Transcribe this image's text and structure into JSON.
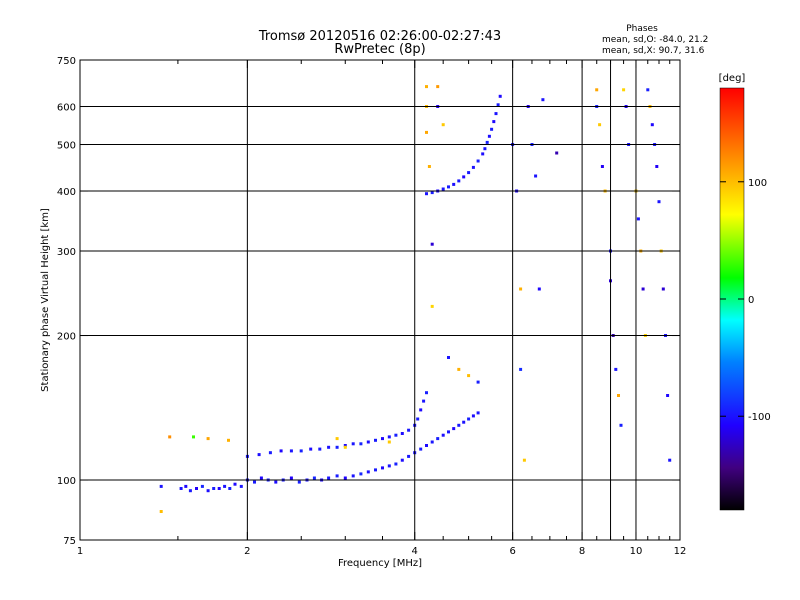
{
  "chart_data": {
    "type": "scatter",
    "title": "Tromsø 20120516 02:26:00-02:27:43",
    "subtitle": "RwPretec (8p)",
    "xlabel": "Frequency [MHz]",
    "ylabel": "Stationary phase Virtual Height [km]",
    "x_scale": "log",
    "y_scale": "log",
    "xlim": [
      1,
      12
    ],
    "ylim": [
      75,
      750
    ],
    "x_ticks": [
      1,
      2,
      4,
      6,
      8,
      10,
      12
    ],
    "x_tick_labels": [
      "1",
      "2",
      "4",
      "6",
      "8",
      "10",
      "12"
    ],
    "x_minor_ticks": [
      1.5,
      2.5,
      3,
      3.5,
      4.5,
      5,
      5.5,
      6.5,
      7,
      7.5,
      8.5,
      9,
      9.5,
      10.5,
      11,
      11.5
    ],
    "y_ticks": [
      75,
      100,
      200,
      300,
      400,
      500,
      600,
      750
    ],
    "y_tick_labels": [
      "75",
      "100",
      "200",
      "300",
      "400",
      "500",
      "600",
      "750"
    ],
    "grid_x": [
      2,
      4,
      6,
      8,
      9,
      10
    ],
    "grid_y": [
      100,
      200,
      300,
      400,
      500,
      600
    ],
    "phases": {
      "header": "Phases",
      "o_line": "mean, sd,O: -84.0, 21.2",
      "x_line": "mean, sd,X:  90.7, 31.6"
    },
    "colorbar": {
      "label": "[deg]",
      "range": [
        -180,
        180
      ],
      "ticks": [
        100,
        0,
        -100
      ],
      "tick_labels": [
        "100",
        "0",
        "-100"
      ]
    },
    "series": [
      {
        "trace": "lower",
        "points": [
          [
            1.52,
            96,
            -100
          ],
          [
            1.55,
            97,
            -105
          ],
          [
            1.58,
            95,
            -98
          ],
          [
            1.62,
            96,
            -110
          ],
          [
            1.66,
            97,
            -92
          ],
          [
            1.7,
            95,
            -102
          ],
          [
            1.74,
            96,
            -96
          ],
          [
            1.78,
            96,
            -108
          ],
          [
            1.82,
            97,
            -100
          ],
          [
            1.86,
            96,
            -95
          ],
          [
            1.9,
            98,
            -104
          ],
          [
            1.95,
            97,
            -99
          ],
          [
            2.0,
            100,
            -101
          ],
          [
            2.06,
            99,
            -97
          ],
          [
            2.12,
            101,
            -106
          ],
          [
            2.18,
            100,
            -94
          ],
          [
            2.25,
            99,
            -103
          ],
          [
            2.32,
            100,
            -98
          ],
          [
            2.4,
            101,
            -109
          ],
          [
            2.48,
            99,
            -95
          ],
          [
            2.56,
            100,
            -100
          ],
          [
            2.64,
            101,
            -93
          ],
          [
            2.72,
            100,
            -104
          ],
          [
            2.8,
            101,
            -99
          ],
          [
            2.9,
            102,
            -96
          ],
          [
            3.0,
            101,
            -107
          ],
          [
            3.1,
            102,
            -100
          ],
          [
            3.2,
            103,
            -92
          ],
          [
            3.3,
            104,
            -101
          ],
          [
            3.4,
            105,
            -97
          ],
          [
            3.5,
            106,
            -105
          ],
          [
            3.6,
            107,
            -99
          ],
          [
            3.7,
            108,
            -94
          ],
          [
            3.8,
            110,
            -103
          ],
          [
            3.9,
            112,
            -98
          ],
          [
            4.0,
            114,
            -100
          ],
          [
            4.1,
            116,
            -96
          ],
          [
            4.2,
            118,
            -104
          ],
          [
            4.3,
            120,
            -99
          ],
          [
            4.4,
            122,
            -95
          ],
          [
            4.5,
            124,
            -102
          ],
          [
            4.6,
            126,
            -98
          ],
          [
            4.7,
            128,
            -106
          ],
          [
            4.8,
            130,
            -97
          ],
          [
            4.9,
            132,
            -101
          ],
          [
            5.0,
            134,
            -95
          ],
          [
            5.1,
            136,
            -103
          ],
          [
            5.2,
            138,
            -99
          ]
        ]
      },
      {
        "trace": "upper",
        "points": [
          [
            2.0,
            112,
            -98
          ],
          [
            2.1,
            113,
            -102
          ],
          [
            2.2,
            114,
            -96
          ],
          [
            2.3,
            115,
            -105
          ],
          [
            2.4,
            115,
            -99
          ],
          [
            2.5,
            115,
            -94
          ],
          [
            2.6,
            116,
            -103
          ],
          [
            2.7,
            116,
            -97
          ],
          [
            2.8,
            117,
            -101
          ],
          [
            2.9,
            117,
            -95
          ],
          [
            3.0,
            118,
            -104
          ],
          [
            3.1,
            119,
            -99
          ],
          [
            3.2,
            119,
            -93
          ],
          [
            3.3,
            120,
            -102
          ],
          [
            3.4,
            121,
            -97
          ],
          [
            3.5,
            122,
            -106
          ],
          [
            3.6,
            123,
            -100
          ],
          [
            3.7,
            124,
            -95
          ],
          [
            3.8,
            125,
            -103
          ],
          [
            3.9,
            127,
            -98
          ],
          [
            4.0,
            130,
            -101
          ],
          [
            4.05,
            134,
            -96
          ],
          [
            4.1,
            140,
            -104
          ],
          [
            4.15,
            146,
            -99
          ],
          [
            4.2,
            152,
            -95
          ]
        ]
      },
      {
        "trace": "f-layer",
        "points": [
          [
            4.2,
            395,
            -100
          ],
          [
            4.3,
            397,
            -96
          ],
          [
            4.4,
            400,
            -104
          ],
          [
            4.5,
            404,
            -99
          ],
          [
            4.6,
            408,
            -95
          ],
          [
            4.7,
            413,
            -102
          ],
          [
            4.8,
            420,
            -98
          ],
          [
            4.9,
            428,
            -106
          ],
          [
            5.0,
            437,
            -97
          ],
          [
            5.1,
            448,
            -101
          ],
          [
            5.2,
            462,
            -95
          ],
          [
            5.3,
            478,
            -103
          ],
          [
            5.35,
            490,
            -99
          ],
          [
            5.4,
            505,
            -94
          ],
          [
            5.45,
            520,
            -102
          ],
          [
            5.5,
            538,
            -97
          ],
          [
            5.55,
            558,
            -105
          ],
          [
            5.6,
            580,
            -100
          ],
          [
            5.65,
            605,
            -96
          ],
          [
            5.7,
            630,
            -104
          ]
        ]
      },
      {
        "trace": "scattered",
        "points": [
          [
            1.4,
            97,
            -100
          ],
          [
            1.4,
            86,
            100
          ],
          [
            1.45,
            123,
            120
          ],
          [
            1.6,
            123,
            30
          ],
          [
            1.7,
            122,
            110
          ],
          [
            1.85,
            121,
            105
          ],
          [
            2.9,
            122,
            95
          ],
          [
            3.0,
            117,
            90
          ],
          [
            3.6,
            120,
            95
          ],
          [
            4.2,
            660,
            105
          ],
          [
            4.2,
            600,
            100
          ],
          [
            4.2,
            530,
            110
          ],
          [
            4.25,
            450,
            105
          ],
          [
            4.3,
            310,
            -120
          ],
          [
            4.3,
            230,
            90
          ],
          [
            4.4,
            660,
            115
          ],
          [
            4.4,
            600,
            -110
          ],
          [
            4.5,
            550,
            95
          ],
          [
            4.6,
            180,
            -100
          ],
          [
            4.8,
            170,
            105
          ],
          [
            5.0,
            165,
            100
          ],
          [
            5.2,
            160,
            -95
          ],
          [
            6.0,
            500,
            -100
          ],
          [
            6.1,
            400,
            -105
          ],
          [
            6.2,
            250,
            105
          ],
          [
            6.2,
            170,
            -90
          ],
          [
            6.3,
            110,
            95
          ],
          [
            6.4,
            600,
            -110
          ],
          [
            6.5,
            500,
            -95
          ],
          [
            6.6,
            430,
            -100
          ],
          [
            6.7,
            250,
            -105
          ],
          [
            6.8,
            620,
            -100
          ],
          [
            7.2,
            480,
            -130
          ],
          [
            8.5,
            650,
            110
          ],
          [
            8.5,
            600,
            -95
          ],
          [
            8.6,
            550,
            95
          ],
          [
            8.7,
            450,
            -110
          ],
          [
            8.8,
            400,
            100
          ],
          [
            9.0,
            300,
            -100
          ],
          [
            9.0,
            260,
            -120
          ],
          [
            9.1,
            200,
            -130
          ],
          [
            9.2,
            170,
            -100
          ],
          [
            9.3,
            150,
            110
          ],
          [
            9.4,
            130,
            -95
          ],
          [
            9.5,
            650,
            90
          ],
          [
            9.6,
            600,
            -110
          ],
          [
            9.7,
            500,
            -100
          ],
          [
            10.0,
            400,
            95
          ],
          [
            10.1,
            350,
            -100
          ],
          [
            10.2,
            300,
            105
          ],
          [
            10.3,
            250,
            -120
          ],
          [
            10.4,
            200,
            90
          ],
          [
            10.5,
            650,
            -95
          ],
          [
            10.6,
            600,
            100
          ],
          [
            10.7,
            550,
            -105
          ],
          [
            10.8,
            500,
            -100
          ],
          [
            10.9,
            450,
            -110
          ],
          [
            11.0,
            380,
            -100
          ],
          [
            11.1,
            300,
            95
          ],
          [
            11.2,
            250,
            -120
          ],
          [
            11.3,
            200,
            -100
          ],
          [
            11.4,
            150,
            -105
          ],
          [
            11.5,
            110,
            -100
          ]
        ]
      }
    ]
  }
}
